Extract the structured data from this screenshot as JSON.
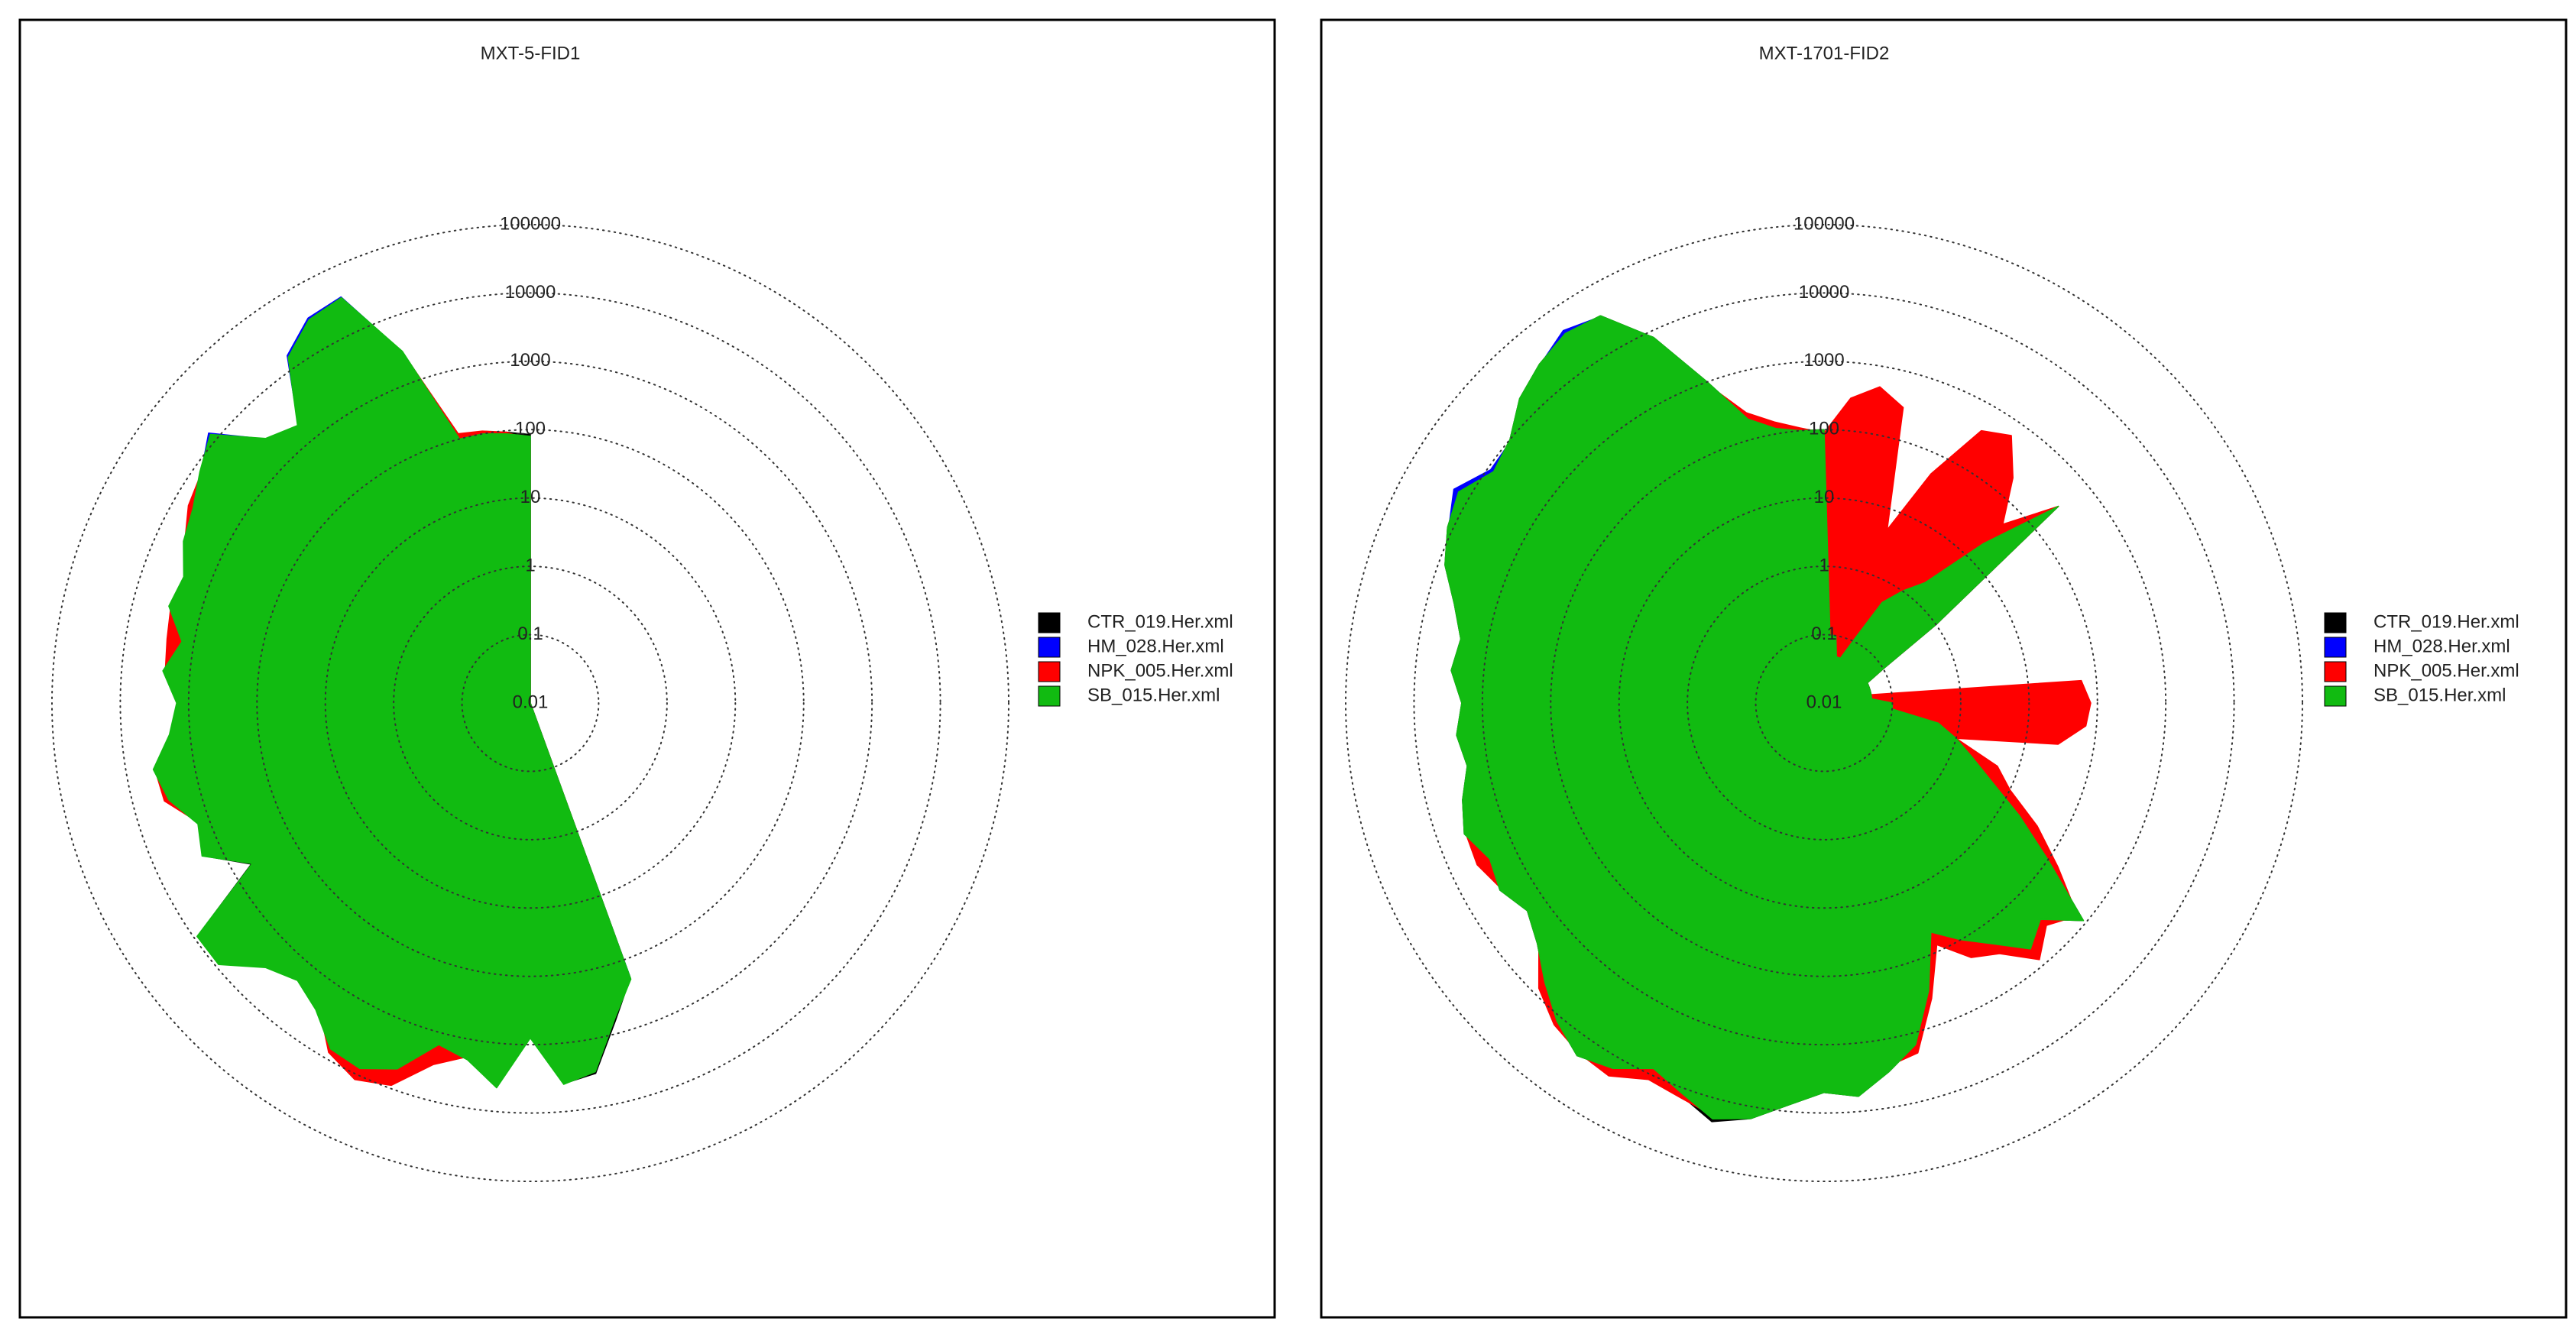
{
  "chart_data": [
    {
      "type": "polar",
      "title": "MXT-5-FID1",
      "log": true,
      "grid": true,
      "legend": "right",
      "rlim": [
        0.01,
        100000
      ],
      "rticks": [
        0.01,
        0.1,
        1,
        10,
        100,
        1000,
        10000,
        100000
      ],
      "x": [
        0,
        5,
        10,
        15,
        20,
        25,
        30,
        35,
        40,
        45,
        50,
        55,
        60,
        65,
        70,
        75,
        80,
        85,
        90,
        95,
        100,
        105,
        110,
        115,
        120,
        125,
        130,
        135,
        140,
        145,
        150,
        155,
        160,
        165,
        170,
        175,
        180,
        185,
        190,
        195,
        200,
        205,
        210,
        215,
        220,
        225,
        230,
        235,
        240,
        245,
        250,
        255,
        260,
        265,
        270,
        275,
        280,
        285,
        290,
        295,
        300,
        305,
        310,
        315,
        320,
        325,
        330,
        335,
        340,
        345,
        350,
        355
      ],
      "series": [
        {
          "name": "CTR_019.Her.xml",
          "color": "#000000",
          "values": [
            85,
            0.01,
            0.01,
            0.01,
            0.01,
            0.01,
            0.01,
            0.01,
            0.01,
            0.01,
            0.01,
            0.01,
            0.01,
            0.01,
            0.01,
            0.01,
            0.01,
            0.01,
            0.01,
            0.01,
            0.01,
            0.01,
            0.01,
            0.01,
            0.01,
            0.01,
            0.01,
            0.01,
            0.01,
            0.01,
            0.01,
            0.01,
            190,
            650,
            3200,
            3900,
            780,
            4400,
            1950,
            1450,
            4800,
            7800,
            6800,
            2900,
            1950,
            2900,
            8800,
            8800,
            520,
            1950,
            1450,
            2900,
            3900,
            1950,
            1450,
            2450,
            1450,
            2900,
            2450,
            3900,
            4800,
            7800,
            12500,
            2900,
            1950,
            14500,
            29000,
            34000,
            2900,
            110,
            105,
            95
          ]
        },
        {
          "name": "HM_028.Her.xml",
          "color": "#0000ff",
          "values": [
            75,
            0.01,
            0.01,
            0.01,
            0.01,
            0.01,
            0.01,
            0.01,
            0.01,
            0.01,
            0.01,
            0.01,
            0.01,
            0.01,
            0.01,
            0.01,
            0.01,
            0.01,
            0.01,
            0.01,
            0.01,
            0.01,
            0.01,
            0.01,
            0.01,
            0.01,
            0.01,
            0.01,
            0.01,
            0.01,
            0.01,
            0.01,
            180,
            550,
            2800,
            3800,
            750,
            4200,
            1900,
            1400,
            4500,
            7500,
            6500,
            2800,
            1900,
            2800,
            8500,
            8500,
            480,
            1900,
            1400,
            2800,
            3800,
            1900,
            1400,
            2400,
            1400,
            2800,
            2400,
            3800,
            5500,
            7600,
            14000,
            2900,
            1900,
            16000,
            32000,
            36000,
            2900,
            105,
            100,
            85
          ]
        },
        {
          "name": "NPK_005.Her.xml",
          "color": "#ff0000",
          "values": [
            70,
            0.01,
            0.01,
            0.01,
            0.01,
            0.01,
            0.01,
            0.01,
            0.01,
            0.01,
            0.01,
            0.01,
            0.01,
            0.01,
            0.01,
            0.01,
            0.01,
            0.01,
            0.01,
            0.01,
            0.01,
            0.01,
            0.01,
            0.01,
            0.01,
            0.01,
            0.01,
            0.01,
            0.01,
            0.01,
            0.01,
            0.01,
            100,
            500,
            2500,
            3500,
            700,
            4000,
            1800,
            3000,
            9000,
            12000,
            8000,
            2500,
            1800,
            2500,
            8000,
            8500,
            450,
            1800,
            1400,
            3500,
            3800,
            1800,
            1400,
            2300,
            2500,
            2800,
            2300,
            3800,
            6000,
            7500,
            12000,
            2800,
            1800,
            14000,
            28000,
            33000,
            2800,
            120,
            110,
            95
          ]
        },
        {
          "name": "SB_015.Her.xml",
          "color": "#11bb11",
          "values": [
            80,
            0.01,
            0.01,
            0.01,
            0.01,
            0.01,
            0.01,
            0.01,
            0.01,
            0.01,
            0.01,
            0.01,
            0.01,
            0.01,
            0.01,
            0.01,
            0.01,
            0.01,
            0.01,
            0.01,
            0.01,
            0.01,
            0.01,
            0.01,
            0.01,
            0.01,
            0.01,
            0.01,
            0.01,
            0.01,
            0.01,
            0.01,
            200,
            600,
            3000,
            4000,
            800,
            4500,
            2000,
            1500,
            5000,
            8000,
            7000,
            3000,
            2000,
            3000,
            9000,
            9000,
            500,
            2000,
            1500,
            3000,
            4000,
            2000,
            1500,
            2500,
            1500,
            3000,
            2500,
            4000,
            5000,
            8000,
            13000,
            3000,
            2000,
            15000,
            30000,
            35000,
            3000,
            100,
            100,
            90
          ]
        }
      ]
    },
    {
      "type": "polar",
      "title": "MXT-1701-FID2",
      "log": true,
      "grid": true,
      "legend": "right",
      "rlim": [
        0.01,
        100000
      ],
      "rticks": [
        0.01,
        0.1,
        1,
        10,
        100,
        1000,
        10000,
        100000
      ],
      "x": [
        0,
        5,
        10,
        15,
        20,
        25,
        30,
        35,
        40,
        45,
        50,
        55,
        60,
        65,
        70,
        75,
        80,
        85,
        90,
        95,
        100,
        105,
        110,
        115,
        120,
        125,
        130,
        135,
        140,
        145,
        150,
        155,
        160,
        165,
        170,
        175,
        180,
        185,
        190,
        195,
        200,
        205,
        210,
        215,
        220,
        225,
        230,
        235,
        240,
        245,
        250,
        255,
        260,
        265,
        270,
        275,
        280,
        285,
        290,
        295,
        300,
        305,
        310,
        315,
        320,
        325,
        330,
        335,
        340,
        345,
        350,
        355
      ],
      "series": [
        {
          "name": "CTR_019.Her.xml",
          "color": "#000000",
          "values": [
            100,
            0.1,
            0.1,
            0.05,
            0.05,
            0.1,
            0.5,
            1,
            2,
            20,
            300,
            1,
            0.1,
            0.05,
            0.05,
            0.05,
            0.05,
            0.05,
            0.1,
            0.1,
            0.5,
            1,
            2,
            5,
            20,
            100,
            900,
            300,
            500,
            200,
            100,
            50,
            300,
            1500,
            3000,
            6000,
            5000,
            8000,
            15000,
            22000,
            13000,
            8000,
            15000,
            20000,
            12000,
            6000,
            3000,
            2000,
            3000,
            2500,
            4000,
            3000,
            2000,
            2500,
            2000,
            3000,
            2500,
            4000,
            8000,
            12000,
            15000,
            8000,
            10000,
            20000,
            30000,
            40000,
            35000,
            8000,
            1000,
            200,
            120,
            100
          ]
        },
        {
          "name": "HM_028.Her.xml",
          "color": "#0000ff",
          "values": [
            90,
            0.1,
            0.1,
            0.05,
            0.05,
            0.1,
            0.5,
            1,
            2,
            18,
            280,
            1,
            0.1,
            0.05,
            0.05,
            0.05,
            0.05,
            0.05,
            0.1,
            0.1,
            0.5,
            1,
            2,
            5,
            18,
            90,
            850,
            280,
            480,
            190,
            95,
            48,
            280,
            1400,
            2800,
            5500,
            4800,
            7500,
            14000,
            19000,
            11000,
            7500,
            14000,
            19000,
            11500,
            5800,
            2900,
            1900,
            2900,
            2400,
            3800,
            2900,
            1900,
            2400,
            1900,
            2900,
            2400,
            3800,
            7500,
            11500,
            18000,
            9000,
            9500,
            19000,
            29000,
            45000,
            34000,
            7500,
            950,
            190,
            115,
            95
          ]
        },
        {
          "name": "NPK_005.Her.xml",
          "color": "#ff0000",
          "values": [
            90,
            300,
            500,
            300,
            5,
            50,
            400,
            600,
            200,
            50,
            300,
            1,
            0.1,
            0.05,
            0.05,
            0.05,
            0.05,
            60,
            80,
            70,
            30,
            1,
            5,
            10,
            40,
            150,
            700,
            400,
            800,
            300,
            200,
            80,
            400,
            2000,
            2500,
            5000,
            4500,
            7000,
            13000,
            18000,
            14000,
            12000,
            20000,
            18000,
            14000,
            8000,
            2800,
            1800,
            2800,
            4000,
            3800,
            2800,
            1800,
            2300,
            1800,
            2800,
            2300,
            3800,
            7500,
            11000,
            14000,
            7500,
            9500,
            19000,
            28000,
            38000,
            33000,
            7500,
            900,
            250,
            150,
            110
          ]
        },
        {
          "name": "SB_015.Her.xml",
          "color": "#11bb11",
          "values": [
            100,
            0.1,
            0.1,
            0.05,
            0.05,
            0.1,
            0.5,
            1,
            2,
            20,
            300,
            1,
            0.1,
            0.05,
            0.05,
            0.05,
            0.05,
            0.05,
            0.1,
            0.1,
            0.5,
            1,
            2,
            5,
            20,
            100,
            900,
            300,
            500,
            200,
            100,
            50,
            300,
            1500,
            3000,
            6000,
            5000,
            8000,
            15000,
            20000,
            12000,
            8000,
            15000,
            20000,
            12000,
            6000,
            3000,
            2000,
            3000,
            2500,
            4000,
            3000,
            2000,
            2500,
            2000,
            3000,
            2500,
            4000,
            8000,
            12000,
            15000,
            8000,
            10000,
            20000,
            30000,
            40000,
            35000,
            8000,
            1000,
            200,
            120,
            100
          ]
        }
      ]
    }
  ]
}
